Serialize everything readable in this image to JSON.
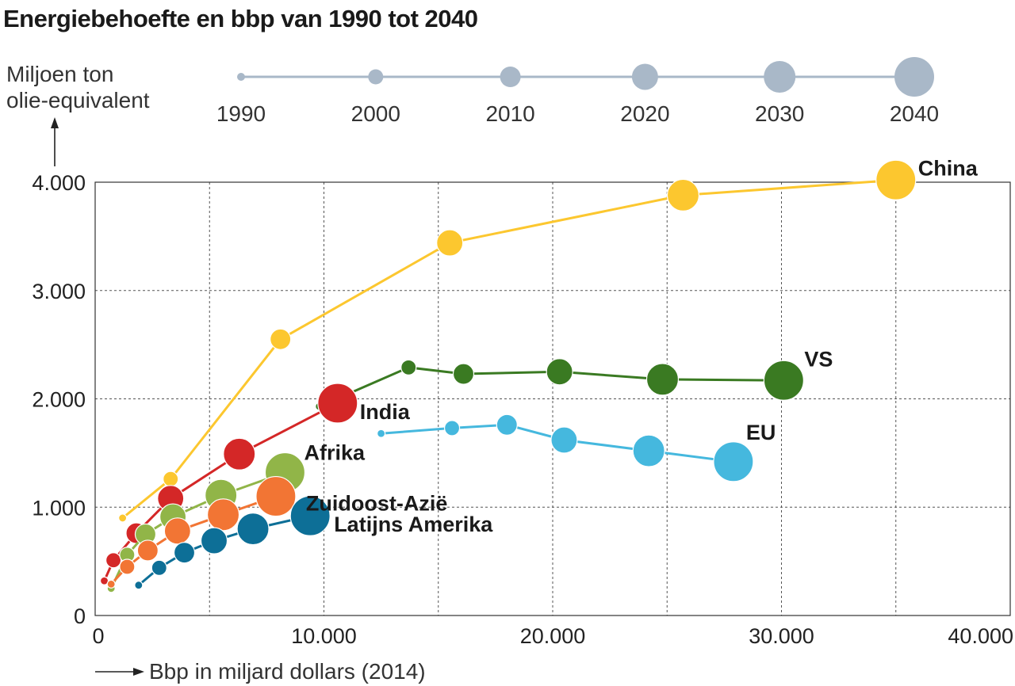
{
  "chart_data": {
    "type": "scatter",
    "title": "Energiebehoefte en bbp van 1990 tot 2040",
    "ylabel": [
      "Miljoen ton",
      "olie-equivalent"
    ],
    "xlabel": "Bbp in miljard dollars (2014)",
    "xlim": [
      0,
      40000
    ],
    "ylim": [
      0,
      4000
    ],
    "x_ticks": [
      0,
      10000,
      20000,
      30000,
      40000
    ],
    "x_tick_labels": [
      "0",
      "10.000",
      "20.000",
      "30.000",
      "40.000"
    ],
    "y_ticks": [
      0,
      1000,
      2000,
      3000,
      4000
    ],
    "y_tick_labels": [
      "0",
      "1.000",
      "2.000",
      "3.000",
      "4.000"
    ],
    "grid": true,
    "bubble_legend": {
      "years": [
        "1990",
        "2000",
        "2010",
        "2020",
        "2030",
        "2040"
      ],
      "color": "#a9b8c8"
    },
    "years": [
      1990,
      2000,
      2010,
      2020,
      2030,
      2040
    ],
    "series": [
      {
        "name": "China",
        "color": "#fcc72f",
        "x": [
          1200,
          3300,
          8100,
          15500,
          25700,
          35000
        ],
        "y": [
          900,
          1260,
          2550,
          3440,
          3880,
          4020
        ]
      },
      {
        "name": "VS",
        "color": "#3a7a22",
        "x": [
          9800,
          13700,
          16100,
          20300,
          24800,
          30100
        ],
        "y": [
          1930,
          2290,
          2230,
          2250,
          2180,
          2170
        ]
      },
      {
        "name": "India",
        "color": "#d42727",
        "x": [
          400,
          800,
          1800,
          3300,
          6300,
          10600
        ],
        "y": [
          320,
          510,
          760,
          1080,
          1490,
          1960
        ]
      },
      {
        "name": "EU",
        "color": "#45b8de",
        "x": [
          12500,
          15600,
          18000,
          20500,
          24200,
          27900
        ],
        "y": [
          1680,
          1730,
          1760,
          1620,
          1520,
          1420
        ]
      },
      {
        "name": "Afrika",
        "color": "#91b548",
        "x": [
          700,
          1400,
          2200,
          3400,
          5500,
          8300
        ],
        "y": [
          250,
          560,
          750,
          910,
          1110,
          1320
        ]
      },
      {
        "name": "Zuidoost-Azië",
        "color": "#f27534",
        "x": [
          700,
          1400,
          2300,
          3600,
          5600,
          7900
        ],
        "y": [
          290,
          450,
          600,
          780,
          930,
          1100
        ]
      },
      {
        "name": "Latijns Amerika",
        "color": "#0d6f97",
        "x": [
          1900,
          2800,
          3900,
          5200,
          6900,
          9400
        ],
        "y": [
          280,
          440,
          580,
          690,
          800,
          920
        ]
      }
    ]
  }
}
